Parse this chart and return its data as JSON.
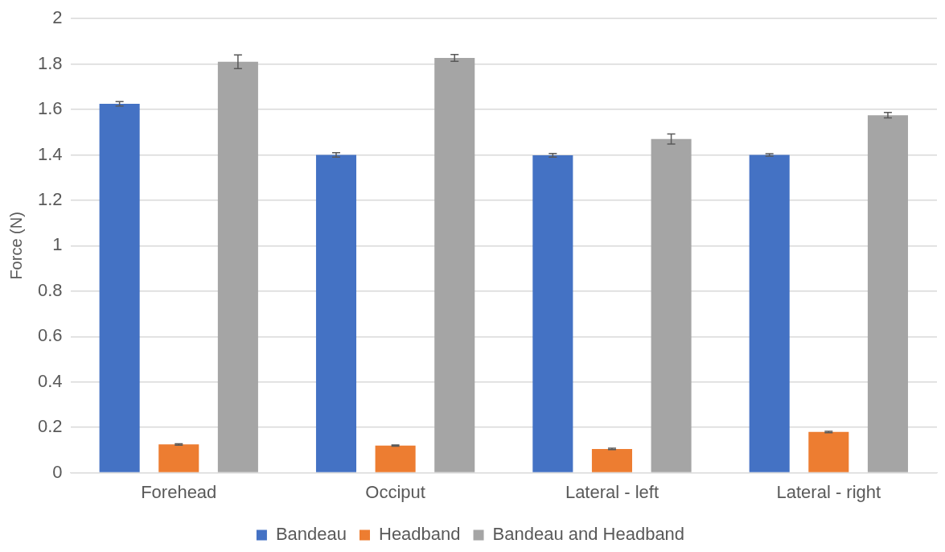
{
  "chart_data": {
    "type": "bar",
    "ylabel": "Force (N)",
    "categories": [
      "Forehead",
      "Occiput",
      "Lateral - left",
      "Lateral - right"
    ],
    "series": [
      {
        "name": "Bandeau",
        "color": "#4472c4",
        "values": [
          1.625,
          1.4,
          1.398,
          1.4
        ],
        "errors": [
          0.01,
          0.01,
          0.008,
          0.005
        ]
      },
      {
        "name": "Headband",
        "color": "#ed7d31",
        "values": [
          0.125,
          0.12,
          0.105,
          0.18
        ],
        "errors": [
          0.003,
          0.003,
          0.003,
          0.003
        ]
      },
      {
        "name": "Bandeau and Headband",
        "color": "#a5a5a5",
        "values": [
          1.81,
          1.827,
          1.47,
          1.575
        ],
        "errors": [
          0.03,
          0.015,
          0.022,
          0.012
        ]
      }
    ],
    "ylim": [
      0,
      2
    ],
    "yticks": [
      0,
      0.2,
      0.4,
      0.6,
      0.8,
      1,
      1.2,
      1.4,
      1.6,
      1.8,
      2
    ],
    "grid": "y",
    "legend": "bottom"
  }
}
